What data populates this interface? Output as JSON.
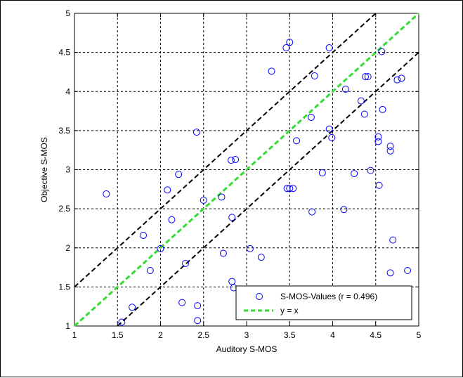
{
  "chart_data": {
    "type": "scatter",
    "title": "",
    "xlabel": "Auditory S-MOS",
    "ylabel": "Objective S-MOS",
    "xlim": [
      1,
      5
    ],
    "ylim": [
      1,
      5
    ],
    "xticks": [
      1,
      1.5,
      2,
      2.5,
      3,
      3.5,
      4,
      4.5,
      5
    ],
    "xtick_labels": [
      "1",
      "1.5",
      "2",
      "2.5",
      "3",
      "3.5",
      "4",
      "4.5",
      "5"
    ],
    "yticks": [
      1,
      1.5,
      2,
      2.5,
      3,
      3.5,
      4,
      4.5,
      5
    ],
    "ytick_labels": [
      "1",
      "1.5",
      "2",
      "2.5",
      "3",
      "3.5",
      "4",
      "4.5",
      "5"
    ],
    "grid": true,
    "legend_position": "bottom-right",
    "series": [
      {
        "name": "S-MOS-Values (r = 0.496)",
        "marker": "circle",
        "color": "#0000ff",
        "x": [
          1.37,
          1.55,
          1.67,
          1.8,
          1.88,
          2.0,
          2.08,
          2.13,
          2.21,
          2.25,
          2.29,
          2.42,
          2.43,
          2.43,
          2.5,
          2.71,
          2.73,
          2.82,
          2.83,
          2.83,
          2.85,
          2.87,
          3.04,
          3.17,
          3.29,
          3.46,
          3.47,
          3.5,
          3.5,
          3.54,
          3.58,
          3.75,
          3.76,
          3.79,
          3.88,
          3.96,
          3.96,
          3.99,
          4.13,
          4.15,
          4.25,
          4.33,
          4.37,
          4.38,
          4.41,
          4.44,
          4.53,
          4.53,
          4.54,
          4.57,
          4.58,
          4.67,
          4.67,
          4.67,
          4.7,
          4.75,
          4.8,
          4.87
        ],
        "y": [
          2.69,
          1.05,
          1.24,
          2.16,
          1.71,
          1.99,
          2.74,
          2.36,
          2.94,
          1.3,
          1.8,
          3.48,
          1.26,
          1.07,
          2.61,
          2.65,
          1.93,
          3.12,
          2.39,
          1.57,
          1.49,
          3.13,
          1.99,
          1.88,
          4.26,
          4.56,
          2.76,
          2.76,
          4.63,
          2.76,
          3.37,
          3.67,
          2.46,
          4.2,
          2.96,
          3.52,
          4.56,
          3.41,
          2.49,
          4.03,
          2.95,
          3.88,
          3.71,
          4.19,
          4.19,
          2.99,
          3.42,
          3.36,
          2.8,
          4.51,
          3.77,
          3.3,
          3.24,
          1.68,
          2.1,
          4.15,
          4.17,
          1.71
        ]
      },
      {
        "name": "y = x",
        "style": "dashed",
        "color": "#33dd33",
        "x": [
          1,
          5
        ],
        "y": [
          1,
          5
        ]
      },
      {
        "name": "",
        "style": "dashed",
        "color": "#000000",
        "x": [
          1,
          4.5
        ],
        "y": [
          1.5,
          5
        ]
      },
      {
        "name": "",
        "style": "dashed",
        "color": "#000000",
        "x": [
          1.5,
          5
        ],
        "y": [
          1,
          4.5
        ]
      }
    ]
  }
}
